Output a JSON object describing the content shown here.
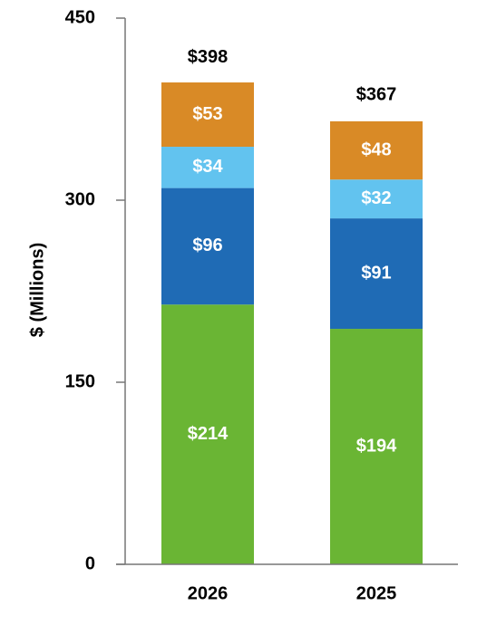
{
  "chart_data": {
    "type": "stacked_bar",
    "y_label": "$ (Millions)",
    "categories": [
      "2026",
      "2025"
    ],
    "series": [
      {
        "color": "#6ab534",
        "values": [
          214,
          194
        ],
        "value_labels": [
          "$214",
          "$194"
        ]
      },
      {
        "color": "#1f6bb5",
        "values": [
          96,
          91
        ],
        "value_labels": [
          "$96",
          "$91"
        ]
      },
      {
        "color": "#62c3ef",
        "values": [
          34,
          32
        ],
        "value_labels": [
          "$34",
          "$32"
        ]
      },
      {
        "color": "#d98a26",
        "values": [
          53,
          48
        ],
        "value_labels": [
          "$53",
          "$48"
        ]
      }
    ],
    "totals": [
      398,
      367
    ],
    "total_labels": [
      "$398",
      "$367"
    ],
    "ylim": [
      0,
      450
    ],
    "yticks": [
      0,
      150,
      300,
      450
    ]
  }
}
